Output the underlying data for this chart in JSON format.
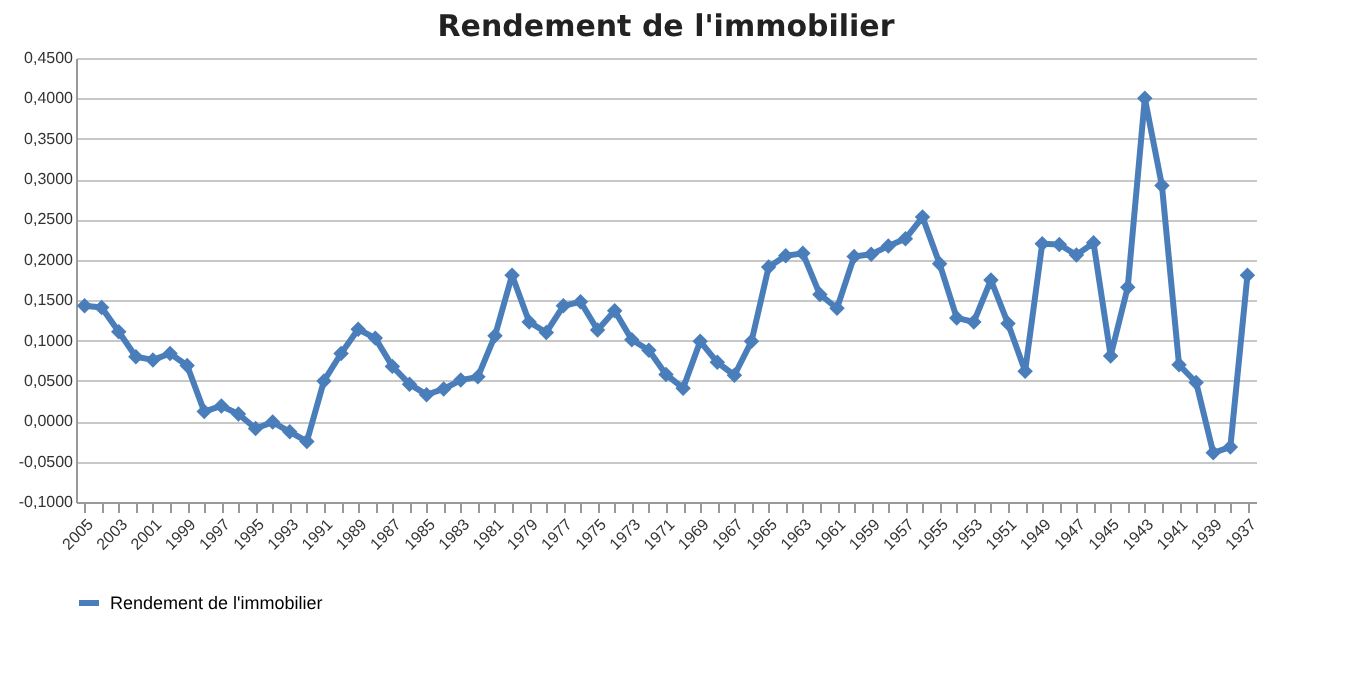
{
  "chart_data": {
    "type": "line",
    "title": "Rendement de l'immobilier",
    "categories": [
      "2005",
      null,
      "2003",
      null,
      "2001",
      null,
      "1999",
      null,
      "1997",
      null,
      "1995",
      null,
      "1993",
      null,
      "1991",
      null,
      "1989",
      null,
      "1987",
      null,
      "1985",
      null,
      "1983",
      null,
      "1981",
      null,
      "1979",
      null,
      "1977",
      null,
      "1975",
      null,
      "1973",
      null,
      "1971",
      null,
      "1969",
      null,
      "1967",
      null,
      "1965",
      null,
      "1963",
      null,
      "1961",
      null,
      "1959",
      null,
      "1957",
      null,
      "1955",
      null,
      "1953",
      null,
      "1951",
      null,
      "1949",
      null,
      "1947",
      null,
      "1945",
      null,
      "1943",
      null,
      "1941",
      null,
      "1939",
      null,
      "1937"
    ],
    "series": [
      {
        "name": "Rendement de l'immobilier",
        "color": "#4a7ebb",
        "values": [
          0.143,
          0.141,
          0.111,
          0.08,
          0.076,
          0.084,
          0.069,
          0.012,
          0.019,
          0.009,
          -0.009,
          -0.001,
          -0.013,
          -0.025,
          0.05,
          0.084,
          0.114,
          0.103,
          0.068,
          0.046,
          0.033,
          0.04,
          0.051,
          0.055,
          0.106,
          0.181,
          0.123,
          0.11,
          0.143,
          0.148,
          0.113,
          0.137,
          0.101,
          0.088,
          0.058,
          0.041,
          0.099,
          0.073,
          0.057,
          0.099,
          0.191,
          0.205,
          0.208,
          0.157,
          0.14,
          0.204,
          0.207,
          0.217,
          0.226,
          0.253,
          0.195,
          0.128,
          0.123,
          0.175,
          0.121,
          0.062,
          0.22,
          0.219,
          0.206,
          0.221,
          0.081,
          0.166,
          0.4,
          0.292,
          0.07,
          0.048,
          -0.039,
          -0.032,
          0.181
        ]
      }
    ],
    "ylim": [
      -0.1,
      0.45
    ],
    "yticks": [
      {
        "value": -0.1,
        "label": "-0,1000"
      },
      {
        "value": -0.05,
        "label": "-0,0500"
      },
      {
        "value": 0,
        "label": "0,0000"
      },
      {
        "value": 0.05,
        "label": "0,0500"
      },
      {
        "value": 0.1,
        "label": "0,1000"
      },
      {
        "value": 0.15,
        "label": "0,1500"
      },
      {
        "value": 0.2,
        "label": "0,2000"
      },
      {
        "value": 0.25,
        "label": "0,2500"
      },
      {
        "value": 0.3,
        "label": "0,3000"
      },
      {
        "value": 0.35,
        "label": "0,3500"
      },
      {
        "value": 0.4,
        "label": "0,4000"
      },
      {
        "value": 0.45,
        "label": "0,4500"
      }
    ],
    "grid": "y",
    "legend": "bottom",
    "marker": "diamond",
    "line_style": "solid"
  }
}
